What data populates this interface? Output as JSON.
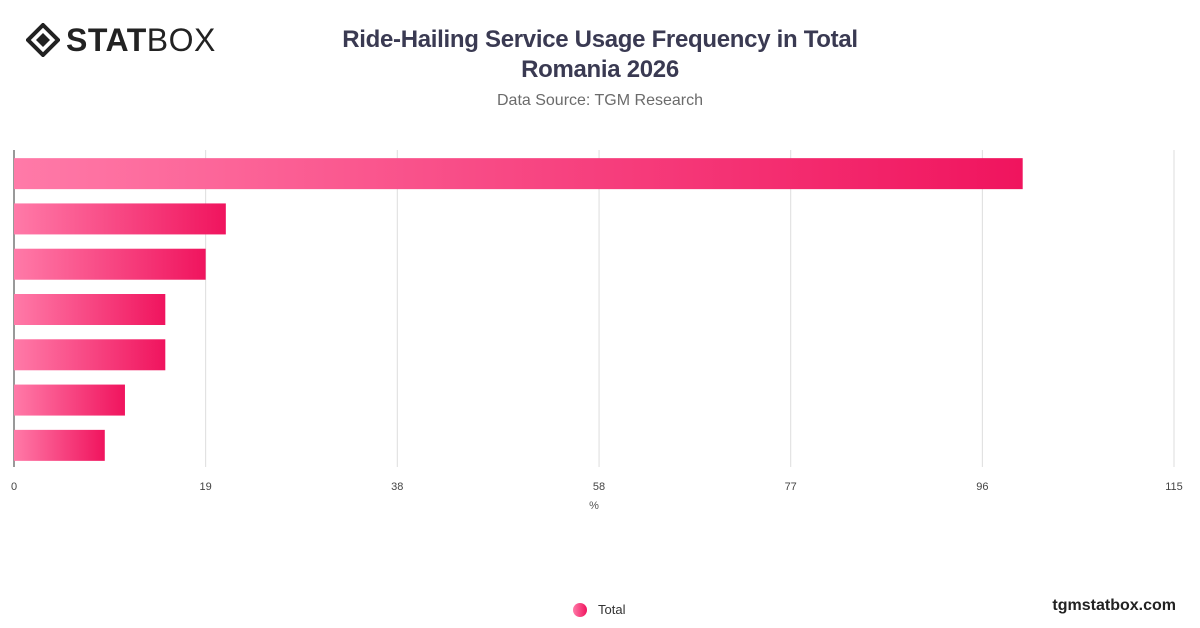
{
  "brand": {
    "logo_bold": "STAT",
    "logo_light": "BOX",
    "website": "tgmstatbox.com"
  },
  "header": {
    "title_line1": "Ride-Hailing Service Usage Frequency in Total",
    "title_line2": "Romania 2026",
    "subtitle": "Data Source: TGM Research"
  },
  "colors": {
    "bar_start": "#ff7aa8",
    "bar_end": "#f0145e",
    "grid": "#dddddd",
    "axis": "#333333"
  },
  "chart_data": {
    "type": "bar",
    "orientation": "horizontal",
    "categories": [
      "",
      "",
      "",
      "",
      "",
      "",
      ""
    ],
    "series": [
      {
        "name": "Total",
        "values": [
          100,
          21,
          19,
          15,
          15,
          11,
          9
        ]
      }
    ],
    "xlabel": "%",
    "xticks": [
      0,
      19,
      38,
      58,
      77,
      96,
      115
    ],
    "xlim": [
      0,
      115
    ],
    "grid": true,
    "legend": "bottom-center"
  }
}
